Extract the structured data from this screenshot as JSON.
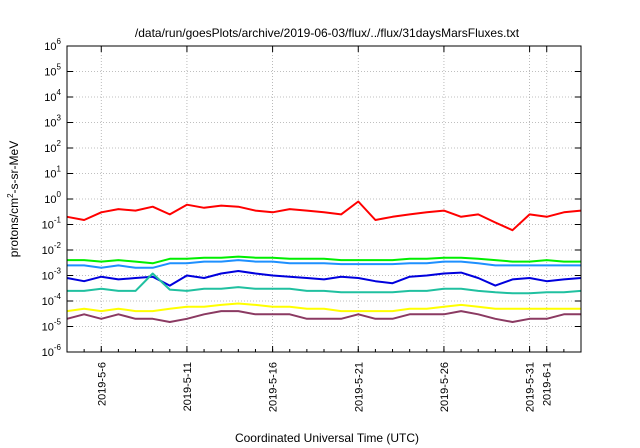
{
  "chart_data": {
    "type": "line",
    "title": "/data/run/goesPlots/archive/2019-06-03/flux/../flux/31daysMarsFluxes.txt",
    "xlabel": "Coordinated Universal Time (UTC)",
    "ylabel": "protons/cm2-s-sr-MeV",
    "ylabel_parts": [
      "protons/cm",
      "2",
      "-s-sr-MeV"
    ],
    "y_scale": "log",
    "ylim": [
      1e-06,
      1000000.0
    ],
    "y_ticks": [
      {
        "base": "10",
        "exp": "-6"
      },
      {
        "base": "10",
        "exp": "-5"
      },
      {
        "base": "10",
        "exp": "-4"
      },
      {
        "base": "10",
        "exp": "-3"
      },
      {
        "base": "10",
        "exp": "-2"
      },
      {
        "base": "10",
        "exp": "-1"
      },
      {
        "base": "10",
        "exp": "0"
      },
      {
        "base": "10",
        "exp": "1"
      },
      {
        "base": "10",
        "exp": "2"
      },
      {
        "base": "10",
        "exp": "3"
      },
      {
        "base": "10",
        "exp": "4"
      },
      {
        "base": "10",
        "exp": "5"
      },
      {
        "base": "10",
        "exp": "6"
      }
    ],
    "xlim": [
      "2019-05-04",
      "2019-06-03"
    ],
    "x_ticks": [
      "2019-5-6",
      "2019-5-11",
      "2019-5-16",
      "2019-5-21",
      "2019-5-26",
      "2019-5-31",
      "2019-6-1"
    ],
    "grid": true,
    "series": [
      {
        "color": "#ff0000",
        "x": [
          "2019-05-04",
          "2019-05-05",
          "2019-05-06",
          "2019-05-07",
          "2019-05-08",
          "2019-05-09",
          "2019-05-10",
          "2019-05-11",
          "2019-05-12",
          "2019-05-13",
          "2019-05-14",
          "2019-05-15",
          "2019-05-16",
          "2019-05-17",
          "2019-05-18",
          "2019-05-19",
          "2019-05-20",
          "2019-05-21",
          "2019-05-22",
          "2019-05-23",
          "2019-05-24",
          "2019-05-25",
          "2019-05-26",
          "2019-05-27",
          "2019-05-28",
          "2019-05-29",
          "2019-05-30",
          "2019-05-31",
          "2019-06-01",
          "2019-06-02",
          "2019-06-03"
        ],
        "y": [
          0.2,
          0.15,
          0.3,
          0.4,
          0.35,
          0.5,
          0.25,
          0.6,
          0.45,
          0.55,
          0.5,
          0.35,
          0.3,
          0.4,
          0.35,
          0.3,
          0.25,
          0.8,
          0.15,
          0.2,
          0.25,
          0.3,
          0.35,
          0.2,
          0.25,
          0.12,
          0.06,
          0.25,
          0.2,
          0.3,
          0.35
        ]
      },
      {
        "color": "#00ee00",
        "x": [
          "2019-05-04",
          "2019-05-05",
          "2019-05-06",
          "2019-05-07",
          "2019-05-08",
          "2019-05-09",
          "2019-05-10",
          "2019-05-11",
          "2019-05-12",
          "2019-05-13",
          "2019-05-14",
          "2019-05-15",
          "2019-05-16",
          "2019-05-17",
          "2019-05-18",
          "2019-05-19",
          "2019-05-20",
          "2019-05-21",
          "2019-05-22",
          "2019-05-23",
          "2019-05-24",
          "2019-05-25",
          "2019-05-26",
          "2019-05-27",
          "2019-05-28",
          "2019-05-29",
          "2019-05-30",
          "2019-05-31",
          "2019-06-01",
          "2019-06-02",
          "2019-06-03"
        ],
        "y": [
          0.004,
          0.004,
          0.0035,
          0.004,
          0.0035,
          0.003,
          0.0045,
          0.0045,
          0.005,
          0.005,
          0.0055,
          0.005,
          0.005,
          0.0045,
          0.0045,
          0.0045,
          0.004,
          0.004,
          0.004,
          0.004,
          0.0045,
          0.0045,
          0.005,
          0.005,
          0.0045,
          0.004,
          0.0035,
          0.0035,
          0.004,
          0.0035,
          0.0035
        ]
      },
      {
        "color": "#1e90ff",
        "x": [
          "2019-05-04",
          "2019-05-05",
          "2019-05-06",
          "2019-05-07",
          "2019-05-08",
          "2019-05-09",
          "2019-05-10",
          "2019-05-11",
          "2019-05-12",
          "2019-05-13",
          "2019-05-14",
          "2019-05-15",
          "2019-05-16",
          "2019-05-17",
          "2019-05-18",
          "2019-05-19",
          "2019-05-20",
          "2019-05-21",
          "2019-05-22",
          "2019-05-23",
          "2019-05-24",
          "2019-05-25",
          "2019-05-26",
          "2019-05-27",
          "2019-05-28",
          "2019-05-29",
          "2019-05-30",
          "2019-05-31",
          "2019-06-01",
          "2019-06-02",
          "2019-06-03"
        ],
        "y": [
          0.0025,
          0.0025,
          0.002,
          0.0025,
          0.002,
          0.002,
          0.003,
          0.003,
          0.0035,
          0.0035,
          0.004,
          0.0035,
          0.0035,
          0.003,
          0.003,
          0.003,
          0.0028,
          0.0028,
          0.0028,
          0.0028,
          0.003,
          0.003,
          0.0035,
          0.0035,
          0.003,
          0.0025,
          0.0025,
          0.0025,
          0.0025,
          0.0025,
          0.0025
        ]
      },
      {
        "color": "#0000dd",
        "x": [
          "2019-05-04",
          "2019-05-05",
          "2019-05-06",
          "2019-05-07",
          "2019-05-08",
          "2019-05-09",
          "2019-05-10",
          "2019-05-11",
          "2019-05-12",
          "2019-05-13",
          "2019-05-14",
          "2019-05-15",
          "2019-05-16",
          "2019-05-17",
          "2019-05-18",
          "2019-05-19",
          "2019-05-20",
          "2019-05-21",
          "2019-05-22",
          "2019-05-23",
          "2019-05-24",
          "2019-05-25",
          "2019-05-26",
          "2019-05-27",
          "2019-05-28",
          "2019-05-29",
          "2019-05-30",
          "2019-05-31",
          "2019-06-01",
          "2019-06-02",
          "2019-06-03"
        ],
        "y": [
          0.0008,
          0.0006,
          0.0009,
          0.0007,
          0.0008,
          0.0009,
          0.0004,
          0.001,
          0.0008,
          0.0012,
          0.0015,
          0.0012,
          0.001,
          0.0009,
          0.0008,
          0.0007,
          0.0009,
          0.0008,
          0.0006,
          0.0005,
          0.0009,
          0.001,
          0.0012,
          0.0013,
          0.0008,
          0.0004,
          0.0007,
          0.0008,
          0.0006,
          0.0007,
          0.0008
        ]
      },
      {
        "color": "#20c0a0",
        "x": [
          "2019-05-04",
          "2019-05-05",
          "2019-05-06",
          "2019-05-07",
          "2019-05-08",
          "2019-05-09",
          "2019-05-10",
          "2019-05-11",
          "2019-05-12",
          "2019-05-13",
          "2019-05-14",
          "2019-05-15",
          "2019-05-16",
          "2019-05-17",
          "2019-05-18",
          "2019-05-19",
          "2019-05-20",
          "2019-05-21",
          "2019-05-22",
          "2019-05-23",
          "2019-05-24",
          "2019-05-25",
          "2019-05-26",
          "2019-05-27",
          "2019-05-28",
          "2019-05-29",
          "2019-05-30",
          "2019-05-31",
          "2019-06-01",
          "2019-06-02",
          "2019-06-03"
        ],
        "y": [
          0.00025,
          0.00025,
          0.0003,
          0.00025,
          0.00025,
          0.0012,
          0.00028,
          0.00025,
          0.0003,
          0.0003,
          0.00035,
          0.0003,
          0.0003,
          0.0003,
          0.00025,
          0.00025,
          0.00022,
          0.00022,
          0.00022,
          0.00022,
          0.00025,
          0.00025,
          0.0003,
          0.0003,
          0.00025,
          0.00022,
          0.0002,
          0.0002,
          0.00022,
          0.00022,
          0.00025
        ]
      },
      {
        "color": "#ffff00",
        "x": [
          "2019-05-04",
          "2019-05-05",
          "2019-05-06",
          "2019-05-07",
          "2019-05-08",
          "2019-05-09",
          "2019-05-10",
          "2019-05-11",
          "2019-05-12",
          "2019-05-13",
          "2019-05-14",
          "2019-05-15",
          "2019-05-16",
          "2019-05-17",
          "2019-05-18",
          "2019-05-19",
          "2019-05-20",
          "2019-05-21",
          "2019-05-22",
          "2019-05-23",
          "2019-05-24",
          "2019-05-25",
          "2019-05-26",
          "2019-05-27",
          "2019-05-28",
          "2019-05-29",
          "2019-05-30",
          "2019-05-31",
          "2019-06-01",
          "2019-06-02",
          "2019-06-03"
        ],
        "y": [
          4e-05,
          5e-05,
          4e-05,
          5e-05,
          4e-05,
          4e-05,
          5e-05,
          6e-05,
          6e-05,
          7e-05,
          8e-05,
          7e-05,
          6e-05,
          6e-05,
          5e-05,
          5e-05,
          4e-05,
          4e-05,
          4e-05,
          4e-05,
          5e-05,
          5e-05,
          6e-05,
          7e-05,
          6e-05,
          5e-05,
          5e-05,
          5e-05,
          5e-05,
          5e-05,
          5e-05
        ]
      },
      {
        "color": "#8b3a62",
        "x": [
          "2019-05-04",
          "2019-05-05",
          "2019-05-06",
          "2019-05-07",
          "2019-05-08",
          "2019-05-09",
          "2019-05-10",
          "2019-05-11",
          "2019-05-12",
          "2019-05-13",
          "2019-05-14",
          "2019-05-15",
          "2019-05-16",
          "2019-05-17",
          "2019-05-18",
          "2019-05-19",
          "2019-05-20",
          "2019-05-21",
          "2019-05-22",
          "2019-05-23",
          "2019-05-24",
          "2019-05-25",
          "2019-05-26",
          "2019-05-27",
          "2019-05-28",
          "2019-05-29",
          "2019-05-30",
          "2019-05-31",
          "2019-06-01",
          "2019-06-02",
          "2019-06-03"
        ],
        "y": [
          2e-05,
          3e-05,
          2e-05,
          3e-05,
          2e-05,
          2e-05,
          1.5e-05,
          2e-05,
          3e-05,
          4e-05,
          4e-05,
          3e-05,
          3e-05,
          3e-05,
          2e-05,
          2e-05,
          2e-05,
          3e-05,
          2e-05,
          2e-05,
          3e-05,
          3e-05,
          3e-05,
          4e-05,
          3e-05,
          2e-05,
          1.5e-05,
          2e-05,
          2e-05,
          3e-05,
          3e-05
        ]
      }
    ]
  }
}
